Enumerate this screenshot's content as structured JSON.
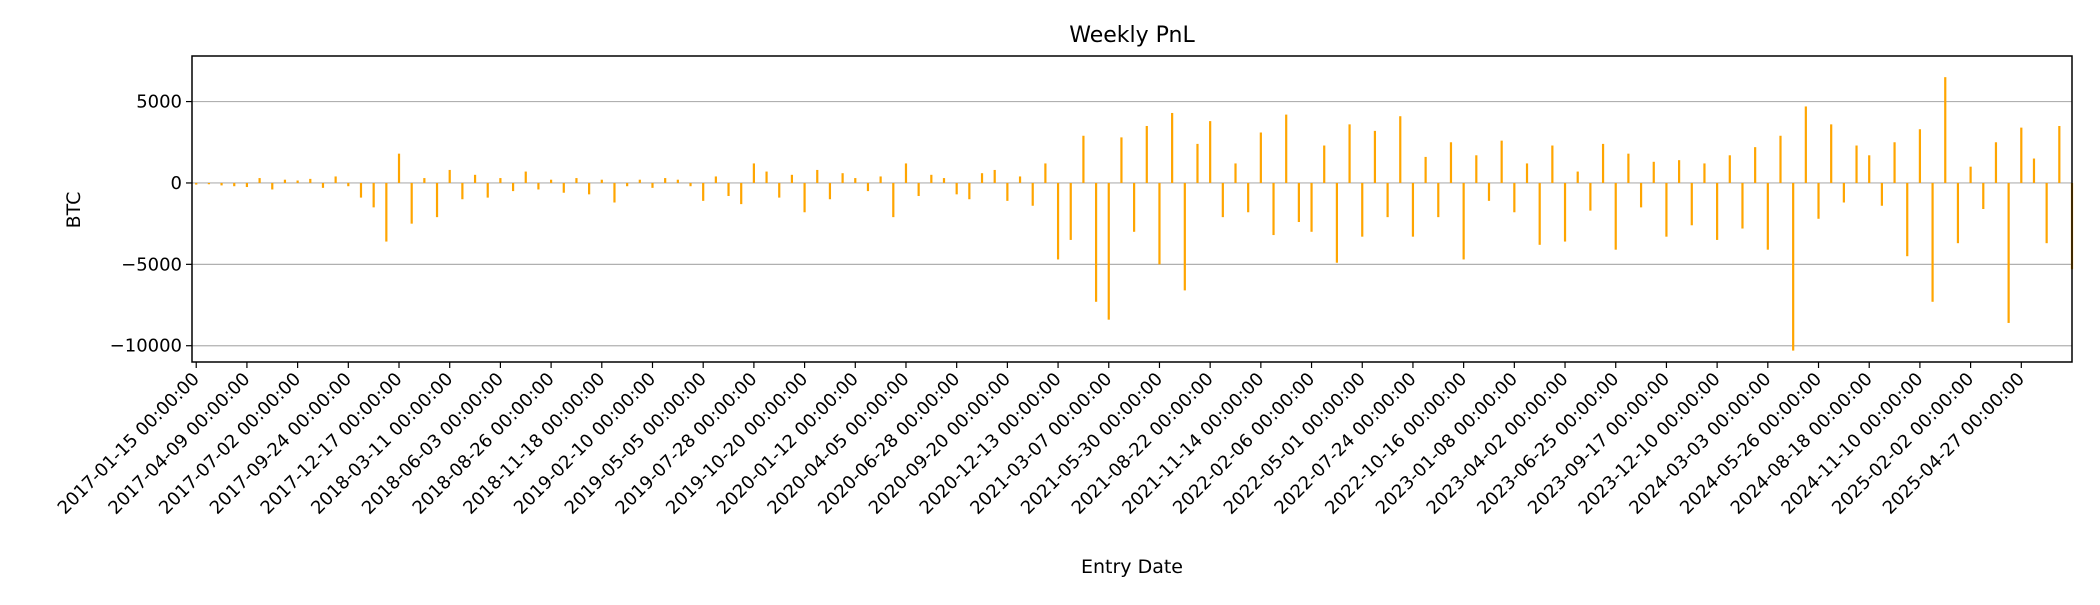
{
  "chart_data": {
    "type": "bar",
    "title": "Weekly PnL",
    "xlabel": "Entry Date",
    "ylabel": "BTC",
    "bar_color": "#FFA500",
    "grid": "y-only",
    "ylim": [
      -11000,
      7800
    ],
    "yticks": [
      5000,
      0,
      -5000,
      -10000
    ],
    "ytick_labels": [
      "5000",
      "0",
      "−5000",
      "−10000"
    ],
    "x_start": "2017-01-08",
    "x_end": "2025-07-20",
    "xticks": [
      "2017-01-15 00:00:00",
      "2017-04-09 00:00:00",
      "2017-07-02 00:00:00",
      "2017-09-24 00:00:00",
      "2017-12-17 00:00:00",
      "2018-03-11 00:00:00",
      "2018-06-03 00:00:00",
      "2018-08-26 00:00:00",
      "2018-11-18 00:00:00",
      "2019-02-10 00:00:00",
      "2019-05-05 00:00:00",
      "2019-07-28 00:00:00",
      "2019-10-20 00:00:00",
      "2020-01-12 00:00:00",
      "2020-04-05 00:00:00",
      "2020-06-28 00:00:00",
      "2020-09-20 00:00:00",
      "2020-12-13 00:00:00",
      "2021-03-07 00:00:00",
      "2021-05-30 00:00:00",
      "2021-08-22 00:00:00",
      "2021-11-14 00:00:00",
      "2022-02-06 00:00:00",
      "2022-05-01 00:00:00",
      "2022-07-24 00:00:00",
      "2022-10-16 00:00:00",
      "2023-01-08 00:00:00",
      "2023-04-02 00:00:00",
      "2023-06-25 00:00:00",
      "2023-09-17 00:00:00",
      "2023-12-10 00:00:00",
      "2024-03-03 00:00:00",
      "2024-05-26 00:00:00",
      "2024-08-18 00:00:00",
      "2024-11-10 00:00:00",
      "2025-02-02 00:00:00",
      "2025-04-27 00:00:00"
    ],
    "x": [
      "2017-01-15",
      "2017-02-05",
      "2017-02-26",
      "2017-03-19",
      "2017-04-09",
      "2017-04-30",
      "2017-05-21",
      "2017-06-11",
      "2017-07-02",
      "2017-07-23",
      "2017-08-13",
      "2017-09-03",
      "2017-09-24",
      "2017-10-15",
      "2017-11-05",
      "2017-11-26",
      "2017-12-17",
      "2018-01-07",
      "2018-01-28",
      "2018-02-18",
      "2018-03-11",
      "2018-04-01",
      "2018-04-22",
      "2018-05-13",
      "2018-06-03",
      "2018-06-24",
      "2018-07-15",
      "2018-08-05",
      "2018-08-26",
      "2018-09-16",
      "2018-10-07",
      "2018-10-28",
      "2018-11-18",
      "2018-12-09",
      "2018-12-30",
      "2019-01-20",
      "2019-02-10",
      "2019-03-03",
      "2019-03-24",
      "2019-04-14",
      "2019-05-05",
      "2019-05-26",
      "2019-06-16",
      "2019-07-07",
      "2019-07-28",
      "2019-08-18",
      "2019-09-08",
      "2019-09-29",
      "2019-10-20",
      "2019-11-10",
      "2019-12-01",
      "2019-12-22",
      "2020-01-12",
      "2020-02-02",
      "2020-02-23",
      "2020-03-15",
      "2020-04-05",
      "2020-04-26",
      "2020-05-17",
      "2020-06-07",
      "2020-06-28",
      "2020-07-19",
      "2020-08-09",
      "2020-08-30",
      "2020-09-20",
      "2020-10-11",
      "2020-11-01",
      "2020-11-22",
      "2020-12-13",
      "2021-01-03",
      "2021-01-24",
      "2021-02-14",
      "2021-03-07",
      "2021-03-28",
      "2021-04-18",
      "2021-05-09",
      "2021-05-30",
      "2021-06-20",
      "2021-07-11",
      "2021-08-01",
      "2021-08-22",
      "2021-09-12",
      "2021-10-03",
      "2021-10-24",
      "2021-11-14",
      "2021-12-05",
      "2021-12-26",
      "2022-01-16",
      "2022-02-06",
      "2022-02-27",
      "2022-03-20",
      "2022-04-10",
      "2022-05-01",
      "2022-05-22",
      "2022-06-12",
      "2022-07-03",
      "2022-07-24",
      "2022-08-14",
      "2022-09-04",
      "2022-09-25",
      "2022-10-16",
      "2022-11-06",
      "2022-11-27",
      "2022-12-18",
      "2023-01-08",
      "2023-01-29",
      "2023-02-19",
      "2023-03-12",
      "2023-04-02",
      "2023-04-23",
      "2023-05-14",
      "2023-06-04",
      "2023-06-25",
      "2023-07-16",
      "2023-08-06",
      "2023-08-27",
      "2023-09-17",
      "2023-10-08",
      "2023-10-29",
      "2023-11-19",
      "2023-12-10",
      "2023-12-31",
      "2024-01-21",
      "2024-02-11",
      "2024-03-03",
      "2024-03-24",
      "2024-04-14",
      "2024-05-05",
      "2024-05-26",
      "2024-06-16",
      "2024-07-07",
      "2024-07-28",
      "2024-08-18",
      "2024-09-08",
      "2024-09-29",
      "2024-10-20",
      "2024-11-10",
      "2024-12-01",
      "2024-12-22",
      "2025-01-12",
      "2025-02-02",
      "2025-02-23",
      "2025-03-16",
      "2025-04-06",
      "2025-04-27",
      "2025-05-18",
      "2025-06-08",
      "2025-06-29",
      "2025-07-20"
    ],
    "values": [
      -100,
      -80,
      -150,
      -200,
      -250,
      300,
      -400,
      200,
      150,
      250,
      -300,
      400,
      -200,
      -900,
      -1500,
      -3600,
      1800,
      -2500,
      300,
      -2100,
      800,
      -1000,
      500,
      -900,
      300,
      -500,
      700,
      -400,
      200,
      -600,
      300,
      -700,
      200,
      -1200,
      -200,
      200,
      -300,
      300,
      200,
      -200,
      -1100,
      400,
      -800,
      -1300,
      1200,
      700,
      -900,
      500,
      -1800,
      800,
      -1000,
      600,
      300,
      -500,
      400,
      -2100,
      1200,
      -800,
      500,
      300,
      -700,
      -1000,
      600,
      800,
      -1100,
      400,
      -1400,
      1200,
      -4700,
      -3500,
      2900,
      -7300,
      -8400,
      2800,
      -3000,
      3500,
      -5000,
      4300,
      -6600,
      2400,
      3800,
      -2100,
      1200,
      -1800,
      3100,
      -3200,
      4200,
      -2400,
      -3000,
      2300,
      -4900,
      3600,
      -3300,
      3200,
      -2100,
      4100,
      -3300,
      1600,
      -2100,
      2500,
      -4700,
      1700,
      -1100,
      2600,
      -1800,
      1200,
      -3800,
      2300,
      -3600,
      700,
      -1700,
      2400,
      -4100,
      1800,
      -1500,
      1300,
      -3300,
      1400,
      -2600,
      1200,
      -3500,
      1700,
      -2800,
      2200,
      -4100,
      2900,
      -10300,
      4700,
      -2200,
      3600,
      -1200,
      2300,
      1700,
      -1400,
      2500,
      -4500,
      3300,
      -7300,
      6500,
      -3700,
      1000,
      -1600,
      2500,
      -8600,
      3400,
      1500,
      -3700,
      3500,
      -5300
    ]
  }
}
